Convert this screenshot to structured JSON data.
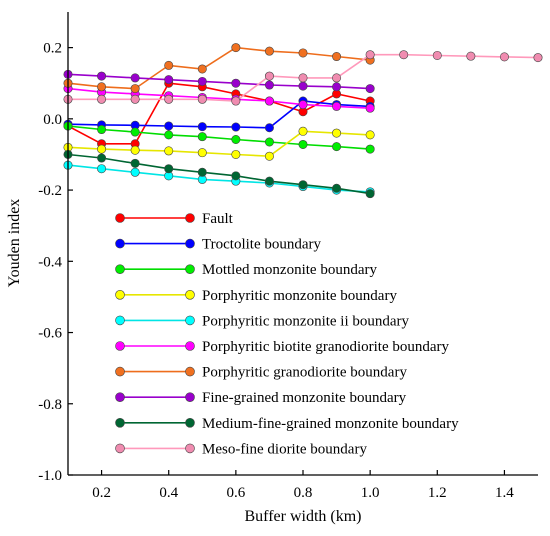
{
  "chart_data": {
    "type": "line",
    "xlabel": "Buffer width (km)",
    "ylabel": "Youden index",
    "xlim": [
      0.1,
      1.5
    ],
    "ylim": [
      -1.0,
      0.3
    ],
    "xticks": [
      {
        "v": 0.2,
        "label": "0.2"
      },
      {
        "v": 0.4,
        "label": "0.4"
      },
      {
        "v": 0.6,
        "label": "0.6"
      },
      {
        "v": 0.8,
        "label": "0.8"
      },
      {
        "v": 1.0,
        "label": "1.0"
      },
      {
        "v": 1.2,
        "label": "1.2"
      },
      {
        "v": 1.4,
        "label": "1.4"
      }
    ],
    "yticks": [
      {
        "v": 0.2,
        "label": "0.2"
      },
      {
        "v": 0.0,
        "label": "0.0"
      },
      {
        "v": -0.2,
        "label": "-0.2"
      },
      {
        "v": -0.4,
        "label": "-0.4"
      },
      {
        "v": -0.6,
        "label": "-0.6"
      },
      {
        "v": -0.8,
        "label": "-0.8"
      },
      {
        "v": -1.0,
        "label": "-1.0"
      }
    ],
    "grid": false,
    "legend_position": "lower-left",
    "series": [
      {
        "name": "Fault",
        "color": "#ff0000",
        "line": "#ff0000",
        "x": [
          0.1,
          0.2,
          0.3,
          0.4,
          0.5,
          0.6,
          0.7,
          0.8,
          0.9,
          1.0
        ],
        "y": [
          -0.02,
          -0.07,
          -0.07,
          0.1,
          0.09,
          0.07,
          0.05,
          0.02,
          0.07,
          0.05
        ]
      },
      {
        "name": "Troctolite boundary",
        "color": "#0000ff",
        "line": "#0000ff",
        "x": [
          0.1,
          0.2,
          0.3,
          0.4,
          0.5,
          0.6,
          0.7,
          0.8,
          0.9,
          1.0
        ],
        "y": [
          -0.015,
          -0.017,
          -0.018,
          -0.02,
          -0.022,
          -0.023,
          -0.025,
          0.05,
          0.04,
          0.035
        ]
      },
      {
        "name": "Mottled monzonite boundary",
        "color": "#00ee00",
        "line": "#00dd00",
        "x": [
          0.1,
          0.2,
          0.3,
          0.4,
          0.5,
          0.6,
          0.7,
          0.8,
          0.9,
          1.0
        ],
        "y": [
          -0.02,
          -0.03,
          -0.037,
          -0.045,
          -0.05,
          -0.058,
          -0.065,
          -0.072,
          -0.078,
          -0.085
        ]
      },
      {
        "name": "Porphyritic monzonite boundary",
        "color": "#ffff00",
        "line": "#e6e600",
        "x": [
          0.1,
          0.2,
          0.3,
          0.4,
          0.5,
          0.6,
          0.7,
          0.8,
          0.9,
          1.0
        ],
        "y": [
          -0.08,
          -0.085,
          -0.088,
          -0.09,
          -0.095,
          -0.1,
          -0.105,
          -0.035,
          -0.04,
          -0.045
        ]
      },
      {
        "name": "Porphyritic monzonite ii boundary",
        "color": "#00ffff",
        "line": "#00e5e5",
        "x": [
          0.1,
          0.2,
          0.3,
          0.4,
          0.5,
          0.6,
          0.7,
          0.8,
          0.9,
          1.0
        ],
        "y": [
          -0.13,
          -0.14,
          -0.15,
          -0.16,
          -0.17,
          -0.175,
          -0.18,
          -0.19,
          -0.2,
          -0.205
        ]
      },
      {
        "name": "Porphyritic biotite granodiorite boundary",
        "color": "#ff00ff",
        "line": "#ff00ff",
        "x": [
          0.1,
          0.2,
          0.3,
          0.4,
          0.5,
          0.6,
          0.7,
          0.8,
          0.9,
          1.0
        ],
        "y": [
          0.085,
          0.075,
          0.07,
          0.065,
          0.06,
          0.055,
          0.05,
          0.04,
          0.035,
          0.03
        ]
      },
      {
        "name": "Porphyritic granodiorite boundary",
        "color": "#f07020",
        "line": "#ee6d1c",
        "x": [
          0.1,
          0.2,
          0.3,
          0.4,
          0.5,
          0.6,
          0.7,
          0.8,
          0.9,
          1.0
        ],
        "y": [
          0.1,
          0.09,
          0.085,
          0.15,
          0.14,
          0.2,
          0.19,
          0.185,
          0.175,
          0.165
        ]
      },
      {
        "name": "Fine-grained monzonite boundary",
        "color": "#9900cc",
        "line": "#9900cc",
        "x": [
          0.1,
          0.2,
          0.3,
          0.4,
          0.5,
          0.6,
          0.7,
          0.8,
          0.9,
          1.0
        ],
        "y": [
          0.125,
          0.12,
          0.115,
          0.11,
          0.105,
          0.1,
          0.095,
          0.092,
          0.09,
          0.085
        ]
      },
      {
        "name": "Medium-fine-grained monzonite boundary",
        "color": "#006633",
        "line": "#006633",
        "x": [
          0.1,
          0.2,
          0.3,
          0.4,
          0.5,
          0.6,
          0.7,
          0.8,
          0.9,
          1.0
        ],
        "y": [
          -0.1,
          -0.11,
          -0.125,
          -0.14,
          -0.15,
          -0.16,
          -0.175,
          -0.185,
          -0.195,
          -0.21
        ]
      },
      {
        "name": "Meso-fine diorite boundary",
        "color": "#f08cb0",
        "line": "#ff99bb",
        "x": [
          0.1,
          0.2,
          0.3,
          0.4,
          0.5,
          0.6,
          0.7,
          0.8,
          0.9,
          1.0,
          1.1,
          1.2,
          1.3,
          1.4,
          1.5
        ],
        "y": [
          0.055,
          0.055,
          0.055,
          0.055,
          0.055,
          0.05,
          0.12,
          0.115,
          0.115,
          0.18,
          0.18,
          0.178,
          0.176,
          0.174,
          0.172
        ]
      }
    ]
  }
}
